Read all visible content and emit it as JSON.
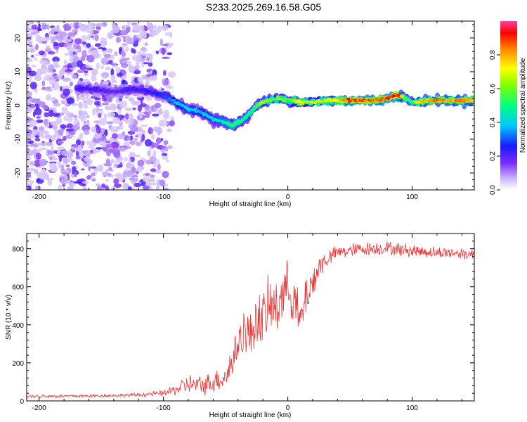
{
  "title": "S233.2025.269.16.58.G05",
  "chart_data": [
    {
      "type": "heatmap",
      "xlabel": "Height of straight line (km)",
      "ylabel": "Frequency (Hz)",
      "xlim": [
        -210,
        150
      ],
      "ylim": [
        -25,
        25
      ],
      "xticks": [
        -200,
        -100,
        0,
        100
      ],
      "yticks": [
        -20,
        -10,
        0,
        10,
        20
      ],
      "colorbar": {
        "label": "Normalized spectral amplitude",
        "range": [
          0,
          1
        ],
        "ticks": [
          "0.0",
          "0.2",
          "0.4",
          "0.6",
          "0.8"
        ]
      },
      "ridge": {
        "x": [
          -160,
          -140,
          -125,
          -110,
          -100,
          -90,
          -80,
          -70,
          -60,
          -50,
          -45,
          -40,
          -35,
          -30,
          -25,
          -20,
          -15,
          -10,
          -5,
          0,
          5,
          10,
          15,
          20,
          30,
          40,
          50,
          60,
          70,
          80,
          85,
          90,
          95,
          100,
          105,
          110,
          120,
          130,
          140,
          150
        ],
        "y": [
          5,
          4,
          5,
          4,
          3,
          1,
          -1,
          -2,
          -4,
          -5,
          -6,
          -5,
          -4,
          -2,
          0,
          1,
          1.5,
          2,
          2,
          1.5,
          1.5,
          1,
          1,
          1,
          1.5,
          1.5,
          1.5,
          1.5,
          1.5,
          2,
          3,
          3,
          2,
          1,
          1,
          1.5,
          1.5,
          1.5,
          1.5,
          1.5
        ],
        "amplitude": [
          0.25,
          0.2,
          0.25,
          0.25,
          0.3,
          0.4,
          0.45,
          0.4,
          0.45,
          0.5,
          0.55,
          0.6,
          0.5,
          0.55,
          0.6,
          0.7,
          0.65,
          0.6,
          0.7,
          0.6,
          0.7,
          0.8,
          0.7,
          0.75,
          0.7,
          0.8,
          0.95,
          0.95,
          0.9,
          0.95,
          1.0,
          0.95,
          0.6,
          0.55,
          0.8,
          0.85,
          0.9,
          0.85,
          0.9,
          0.85
        ]
      }
    },
    {
      "type": "line",
      "xlabel": "Height of straight line (km)",
      "ylabel": "SNR (10 * v/v)",
      "xlim": [
        -210,
        150
      ],
      "ylim": [
        0,
        880
      ],
      "xticks": [
        -200,
        -100,
        0,
        100
      ],
      "yticks": [
        0,
        200,
        400,
        600,
        800
      ],
      "series": [
        {
          "name": "SNR",
          "color": "#ee3333",
          "x": [
            -210,
            -180,
            -150,
            -120,
            -100,
            -90,
            -80,
            -70,
            -60,
            -50,
            -45,
            -40,
            -35,
            -30,
            -25,
            -20,
            -15,
            -10,
            -5,
            0,
            5,
            10,
            15,
            20,
            25,
            30,
            35,
            40,
            50,
            60,
            70,
            80,
            90,
            100,
            110,
            120,
            130,
            140,
            150
          ],
          "y": [
            25,
            25,
            27,
            32,
            40,
            60,
            90,
            80,
            100,
            130,
            200,
            300,
            380,
            330,
            450,
            420,
            500,
            480,
            560,
            600,
            550,
            400,
            560,
            620,
            700,
            740,
            760,
            780,
            790,
            800,
            800,
            805,
            795,
            790,
            785,
            780,
            780,
            775,
            770
          ],
          "noise": [
            8,
            8,
            8,
            10,
            15,
            30,
            50,
            50,
            55,
            70,
            90,
            110,
            120,
            130,
            140,
            150,
            150,
            150,
            150,
            130,
            130,
            120,
            110,
            90,
            70,
            50,
            40,
            35,
            35,
            35,
            35,
            35,
            35,
            35,
            30,
            30,
            30,
            30,
            30
          ]
        }
      ]
    }
  ],
  "icons": {}
}
